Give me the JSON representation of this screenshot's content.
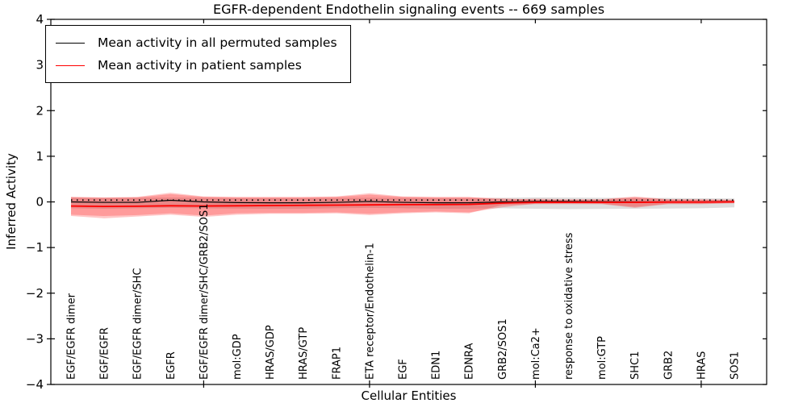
{
  "title": "EGFR-dependent Endothelin signaling events -- 669 samples",
  "legend": {
    "items": [
      {
        "label": "Mean activity in all permuted samples",
        "color": "#000000"
      },
      {
        "label": "Mean activity in patient samples",
        "color": "#ff0000"
      }
    ]
  },
  "chart_data": {
    "type": "line",
    "title": "EGFR-dependent Endothelin signaling events -- 669 samples",
    "xlabel": "Cellular Entities",
    "ylabel": "Inferred Activity",
    "ylim": [
      -4,
      4
    ],
    "yticks": [
      4,
      3,
      2,
      1,
      0,
      -1,
      -2,
      -3,
      -4
    ],
    "yticklabels": [
      "4",
      "3",
      "2",
      "1",
      "0",
      "−1",
      "−2",
      "−3",
      "−4"
    ],
    "xtick_indices": [
      4,
      9,
      14,
      19
    ],
    "grid": false,
    "legend_position": "upper left",
    "categories": [
      "EGF/EGFR dimer",
      "EGF/EGFR",
      "EGF/EGFR dimer/SHC",
      "EGFR",
      "EGF/EGFR dimer/SHC/GRB2/SOS1",
      "mol:GDP",
      "HRAS/GDP",
      "HRAS/GTP",
      "FRAP1",
      "ETA receptor/Endothelin-1",
      "EGF",
      "EDN1",
      "EDNRA",
      "GRB2/SOS1",
      "mol:Ca2+",
      "response to oxidative stress",
      "mol:GTP",
      "SHC1",
      "GRB2",
      "HRAS",
      "SOS1"
    ],
    "series": [
      {
        "name": "Mean activity in all permuted samples",
        "color": "#000000",
        "style": "solid",
        "width": 1.2,
        "values": [
          0.0,
          -0.01,
          -0.01,
          0.035,
          0.0,
          -0.015,
          -0.02,
          -0.02,
          -0.01,
          0.01,
          -0.01,
          -0.02,
          -0.02,
          0.0,
          0.01,
          0.01,
          0.005,
          0.0,
          0.0,
          0.0,
          0.005
        ]
      },
      {
        "name": "Mean activity in patient samples",
        "color": "#ff0000",
        "style": "solid",
        "width": 1.8,
        "values": [
          -0.09,
          -0.1,
          -0.095,
          -0.085,
          -0.09,
          -0.085,
          -0.08,
          -0.075,
          -0.07,
          -0.065,
          -0.06,
          -0.06,
          -0.055,
          -0.025,
          -0.01,
          -0.01,
          -0.01,
          -0.01,
          -0.005,
          -0.005,
          0.0
        ]
      },
      {
        "name": "zero-reference",
        "color": "#000000",
        "style": "dotted",
        "width": 1.8,
        "values": [
          0.04,
          0.04,
          0.04,
          0.04,
          0.04,
          0.04,
          0.04,
          0.04,
          0.04,
          0.04,
          0.04,
          0.04,
          0.04,
          0.04,
          0.04,
          0.04,
          0.04,
          0.04,
          0.04,
          0.04,
          0.04
        ]
      }
    ],
    "bands": [
      {
        "name": "permuted-samples-band",
        "color": "#8a8a8a",
        "opacity": 0.28,
        "top": [
          0.09,
          0.085,
          0.09,
          0.095,
          0.09,
          0.08,
          0.08,
          0.08,
          0.085,
          0.09,
          0.085,
          0.08,
          0.08,
          0.09,
          0.1,
          0.095,
          0.09,
          0.085,
          0.085,
          0.08,
          0.075
        ],
        "bottom": [
          -0.14,
          -0.15,
          -0.14,
          -0.13,
          -0.14,
          -0.145,
          -0.15,
          -0.15,
          -0.14,
          -0.13,
          -0.14,
          -0.15,
          -0.15,
          -0.14,
          -0.15,
          -0.16,
          -0.155,
          -0.15,
          -0.145,
          -0.14,
          -0.12
        ]
      },
      {
        "name": "patient-samples-band-outer",
        "color": "#ff0000",
        "opacity": 0.22,
        "top": [
          0.115,
          0.1,
          0.11,
          0.2,
          0.12,
          0.11,
          0.11,
          0.11,
          0.12,
          0.19,
          0.12,
          0.11,
          0.11,
          0.05,
          0.07,
          0.06,
          0.06,
          0.12,
          0.06,
          0.055,
          0.05
        ],
        "bottom": [
          -0.31,
          -0.36,
          -0.32,
          -0.28,
          -0.33,
          -0.28,
          -0.26,
          -0.26,
          -0.25,
          -0.29,
          -0.25,
          -0.23,
          -0.25,
          -0.07,
          -0.05,
          -0.05,
          -0.05,
          -0.13,
          -0.05,
          -0.05,
          -0.03
        ]
      },
      {
        "name": "patient-samples-band-inner",
        "color": "#ff0000",
        "opacity": 0.22,
        "top": [
          0.1,
          0.09,
          0.1,
          0.17,
          0.11,
          0.1,
          0.1,
          0.1,
          0.11,
          0.16,
          0.11,
          0.1,
          0.1,
          0.08,
          0.05,
          0.04,
          0.05,
          0.1,
          0.05,
          0.05,
          0.04
        ],
        "bottom": [
          -0.28,
          -0.31,
          -0.29,
          -0.25,
          -0.3,
          -0.25,
          -0.24,
          -0.24,
          -0.23,
          -0.26,
          -0.23,
          -0.21,
          -0.23,
          -0.12,
          -0.04,
          -0.03,
          -0.04,
          -0.11,
          -0.04,
          -0.04,
          -0.02
        ]
      }
    ]
  }
}
